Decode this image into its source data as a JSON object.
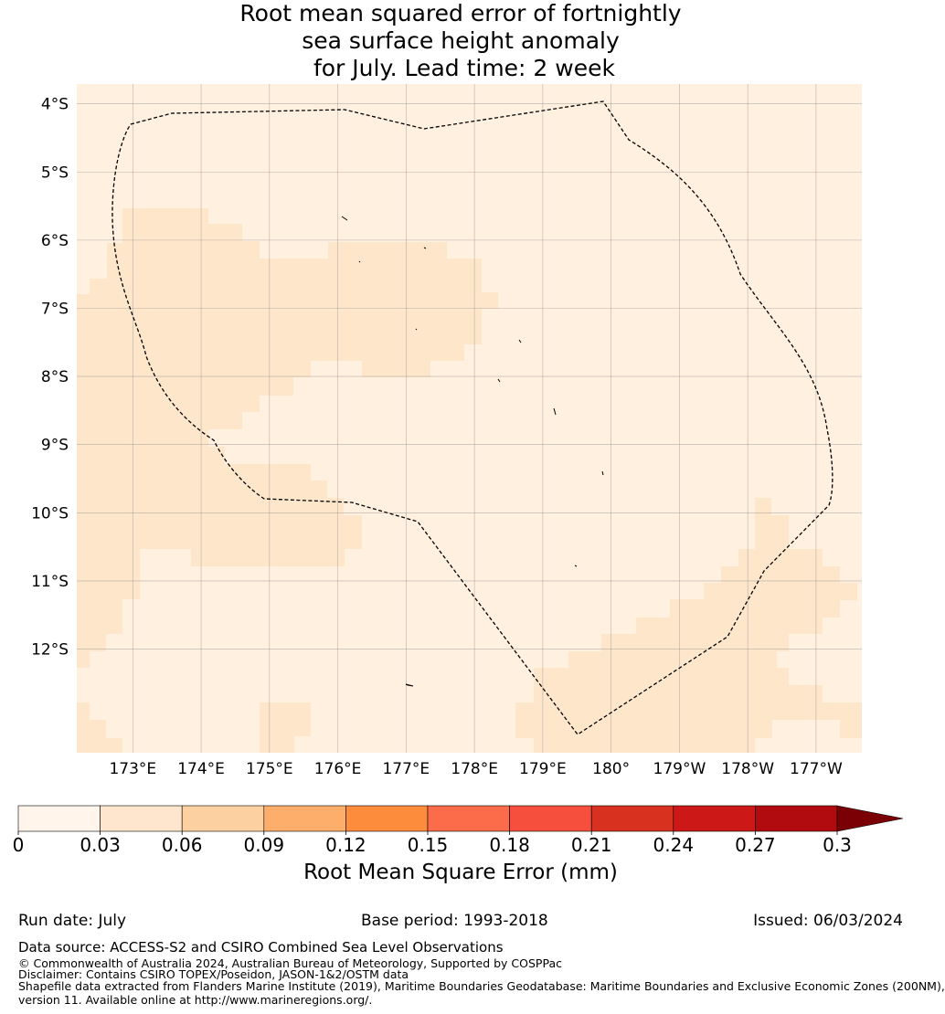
{
  "title": {
    "line1": "Root mean squared error of fortnightly",
    "line2": "sea surface height anomaly",
    "line3": " for July. Lead time: 2 week"
  },
  "map": {
    "lat_labels": [
      "4°S",
      "5°S",
      "6°S",
      "7°S",
      "8°S",
      "9°S",
      "10°S",
      "11°S",
      "12°S"
    ],
    "lat_values": [
      -4,
      -5,
      -6,
      -7,
      -8,
      -9,
      -10,
      -11,
      -12
    ],
    "lon_labels": [
      "173°E",
      "174°E",
      "175°E",
      "176°E",
      "177°E",
      "178°E",
      "179°E",
      "180°",
      "179°W",
      "178°W",
      "177°W"
    ],
    "lon_values": [
      173,
      174,
      175,
      176,
      177,
      178,
      179,
      180,
      181,
      182,
      183
    ],
    "extent": {
      "lon": [
        172.2,
        183.7
      ],
      "lat": [
        -3.7,
        -13.5
      ]
    },
    "colors": {
      "low": "#fff0df",
      "mid": "#fee6ca",
      "eez_line": "#000000",
      "grid": "#888888"
    }
  },
  "colorbar": {
    "ticks": [
      "0",
      "0.03",
      "0.06",
      "0.09",
      "0.12",
      "0.15",
      "0.18",
      "0.21",
      "0.24",
      "0.27",
      "0.3"
    ],
    "colors": [
      "#fff5eb",
      "#fee6ce",
      "#fdd0a2",
      "#fdae6b",
      "#fd8d3c",
      "#fc6c4a",
      "#f64f3d",
      "#d9311f",
      "#cd1818",
      "#b10b0f"
    ],
    "extend_color": "#7a0006",
    "label": "Root Mean Square Error (mm)"
  },
  "footer": {
    "run_date": "Run date: July",
    "base_period": "Base period: 1993-2018",
    "issued": "Issued: 06/03/2024",
    "data_source": "Data source: ACCESS-S2 and CSIRO Combined Sea Level Observations",
    "copyright": "© Commonwealth of Australia 2024, Australian Bureau of Meteorology, Supported by COSPPac",
    "disclaimer": "Disclaimer: Contains CSIRO TOPEX/Poseidon, JASON-1&2/OSTM data",
    "shapefile": "Shapefile data extracted from Flanders Marine Institute (2019), Maritime Boundaries Geodatabase: Maritime Boundaries and Exclusive Economic Zones (200NM),",
    "version": "version 11. Available online at http://www.marineregions.org/."
  }
}
